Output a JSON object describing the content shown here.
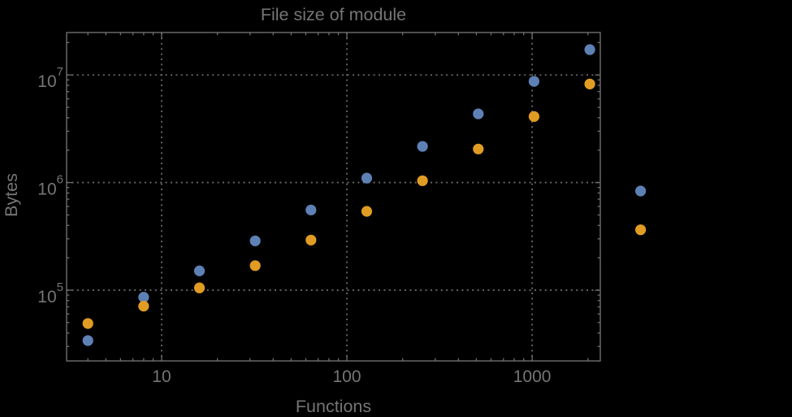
{
  "style": {
    "background": "#000000",
    "text_color": "#757575",
    "frame_color": "#6f6f6f",
    "grid_color": "#6a6a6a"
  },
  "chart_data": {
    "type": "scatter",
    "title": "File size of module",
    "xlabel": "Functions",
    "ylabel": "Bytes",
    "x_scale": "log",
    "y_scale": "log",
    "xlim": [
      3.07,
      2333
    ],
    "ylim": [
      22000,
      24800000
    ],
    "xticks": [
      10,
      100,
      1000
    ],
    "xtick_labels": [
      "10",
      "100",
      "1000"
    ],
    "yticks": [
      100000,
      1000000,
      10000000
    ],
    "ytick_labels": [
      "10^5",
      "10^6",
      "10^7"
    ],
    "grid": "dotted lines at major ticks",
    "legend": "none",
    "plot_range_clipping": false,
    "x": [
      4,
      8,
      16,
      32,
      64,
      128,
      256,
      512,
      1024,
      2048,
      3850
    ],
    "series": [
      {
        "name": "blue",
        "color": "#5E81B5",
        "values": [
          34000,
          86000,
          151000,
          287000,
          556000,
          1100000,
          2170000,
          4350000,
          8720000,
          17200000,
          834000
        ]
      },
      {
        "name": "orange",
        "color": "#E19C24",
        "values": [
          49000,
          71000,
          105000,
          169000,
          292000,
          540000,
          1040000,
          2050000,
          4110000,
          8240000,
          364000
        ]
      }
    ]
  }
}
